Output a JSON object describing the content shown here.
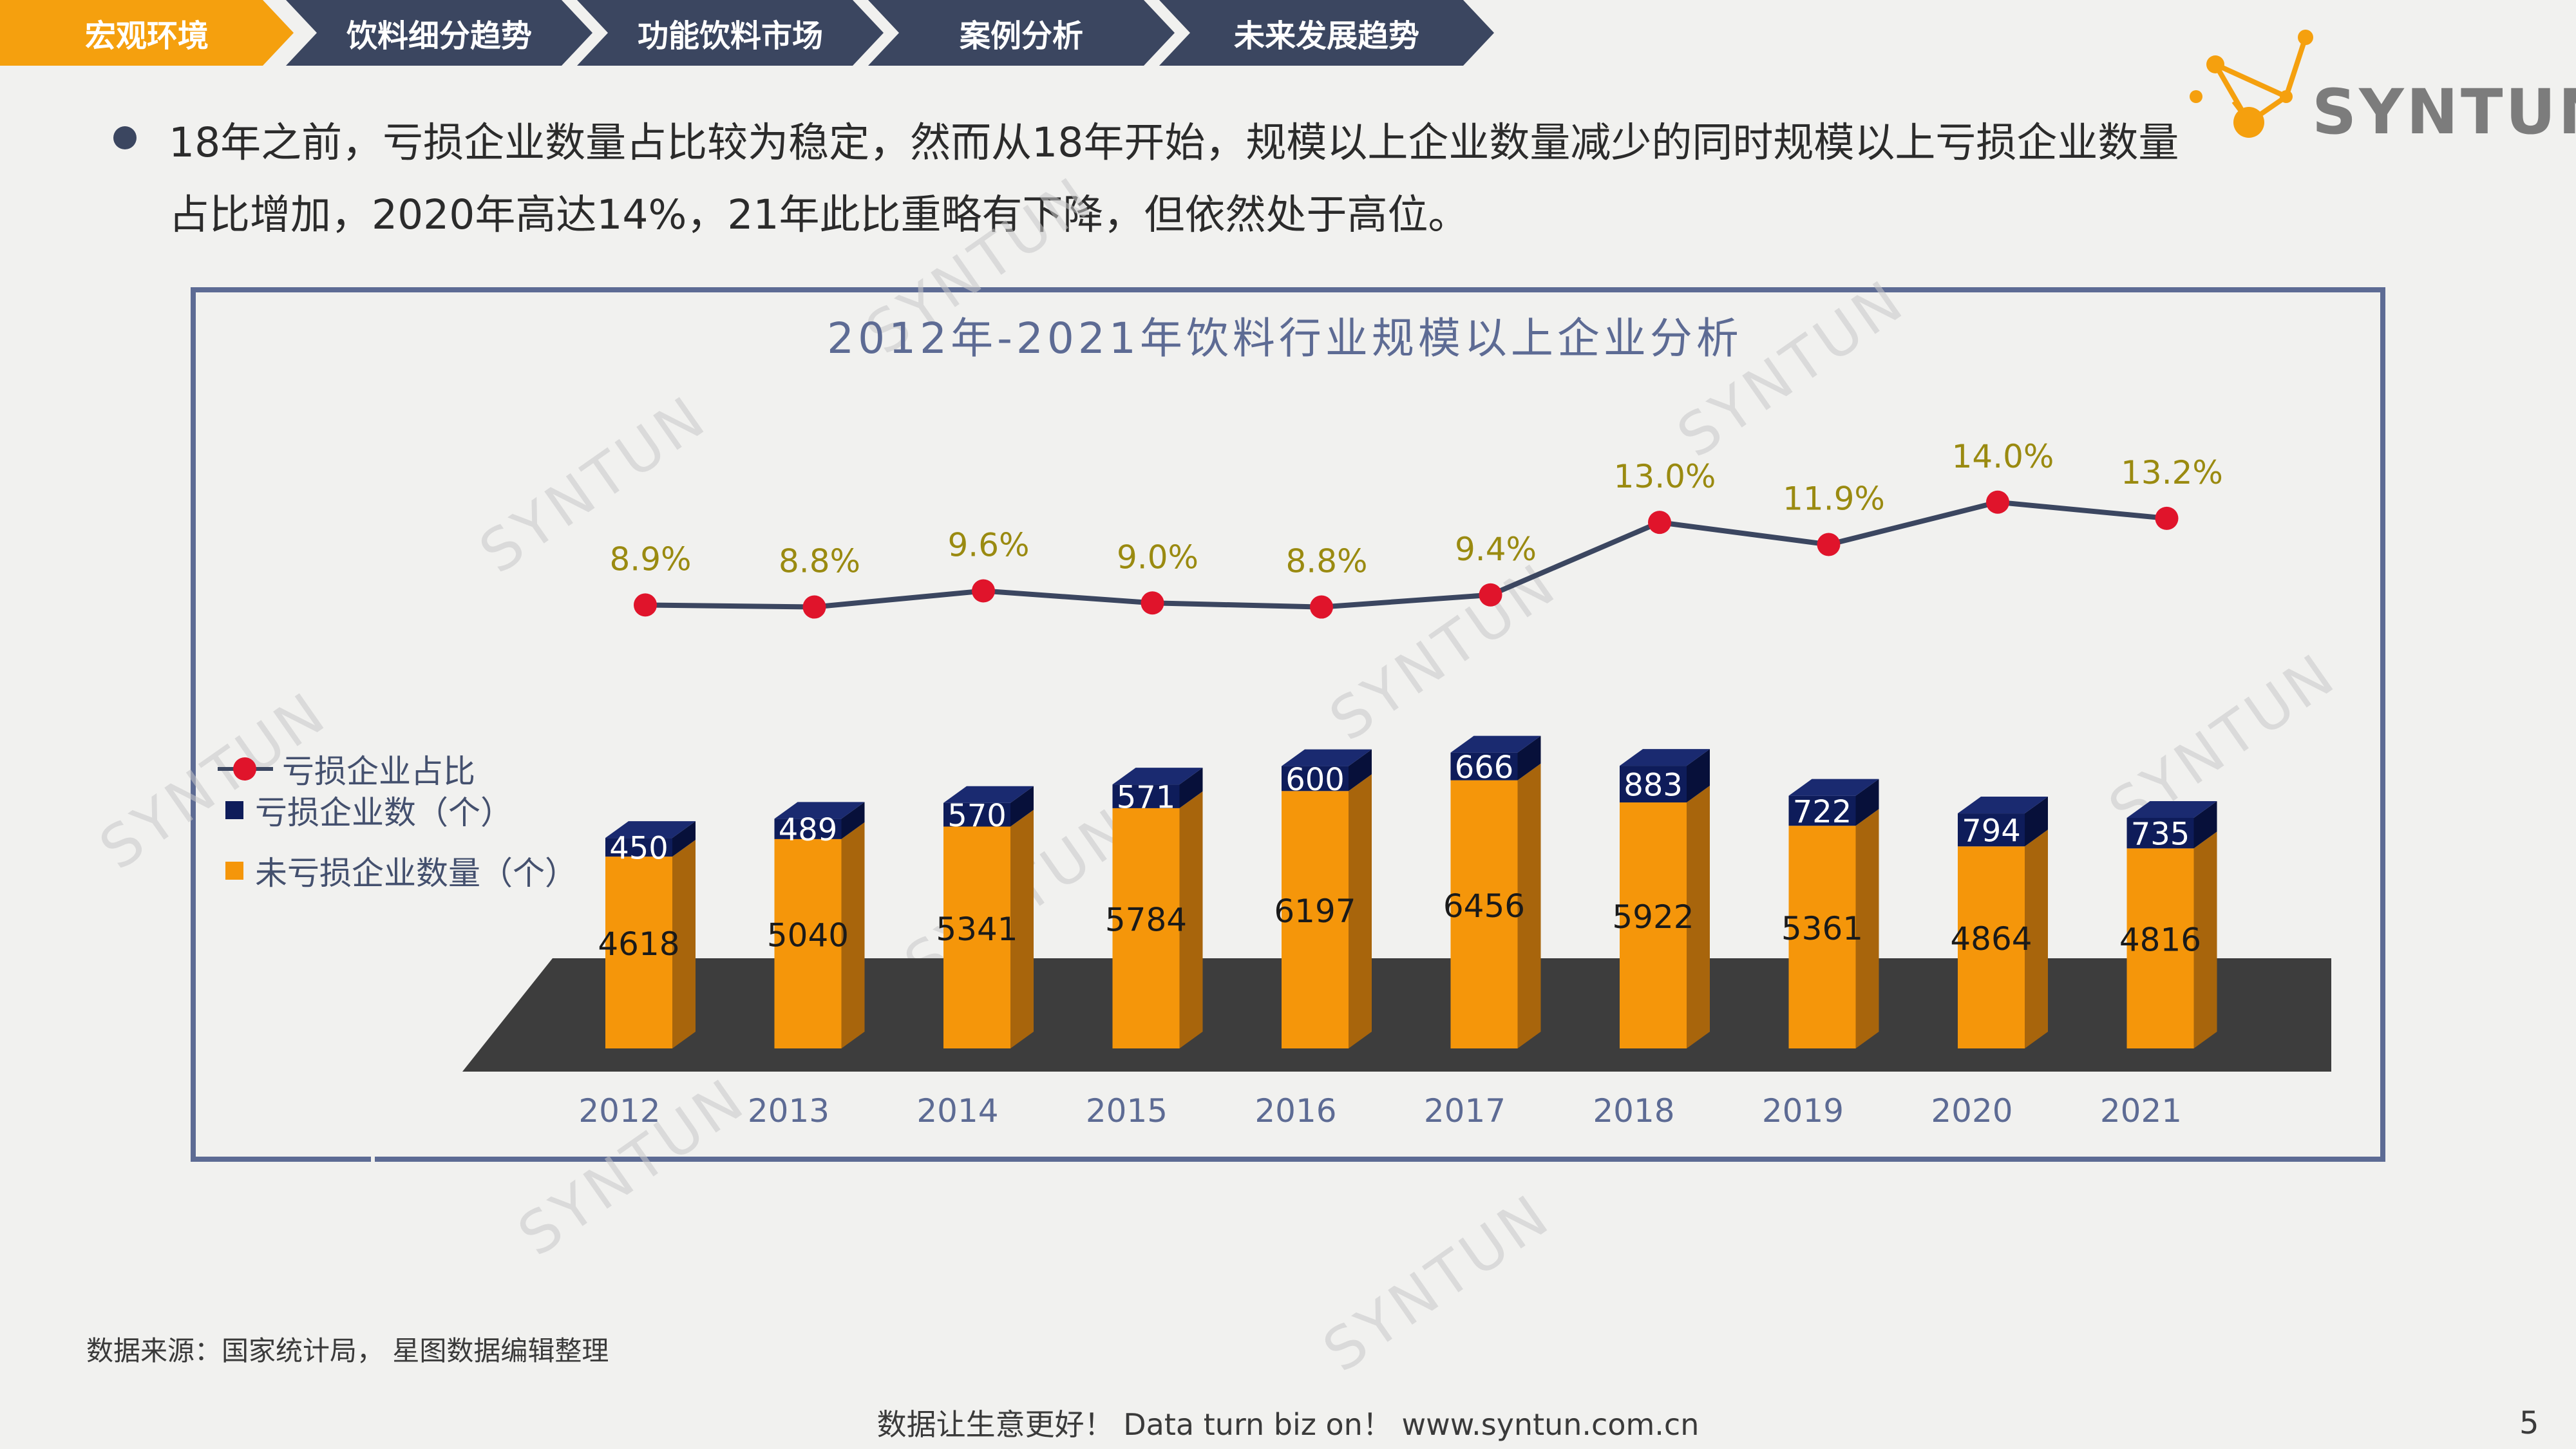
{
  "nav": {
    "items": [
      {
        "label": "宏观环境",
        "active": true
      },
      {
        "label": "饮料细分趋势",
        "active": false
      },
      {
        "label": "功能饮料市场",
        "active": false
      },
      {
        "label": "案例分析",
        "active": false
      },
      {
        "label": "未来发展趋势",
        "active": false
      }
    ],
    "active_color": "#f5a00e",
    "inactive_color": "#3b4660"
  },
  "logo": {
    "text": "SYNTUN",
    "icon": "network-node-icon"
  },
  "bullet": {
    "text": "18年之前，亏损企业数量占比较为稳定，然而从18年开始，规模以上企业数量减少的同时规模以上亏损企业数量占比增加，2020年高达14%，21年此比重略有下降，但依然处于高位。"
  },
  "watermark": "SYNTUN",
  "chart_data": {
    "type": "bar",
    "title": "2012年-2021年饮料行业规模以上企业分析",
    "categories": [
      "2012",
      "2013",
      "2014",
      "2015",
      "2016",
      "2017",
      "2018",
      "2019",
      "2020",
      "2021"
    ],
    "series": [
      {
        "name": "未亏损企业数量（个）",
        "kind": "stacked-bar",
        "color": "#f5960a",
        "values": [
          4618,
          5040,
          5341,
          5784,
          6197,
          6456,
          5922,
          5361,
          4864,
          4816
        ]
      },
      {
        "name": "亏损企业数（个）",
        "kind": "stacked-bar",
        "color": "#0e1c5a",
        "values": [
          450,
          489,
          570,
          571,
          600,
          666,
          883,
          722,
          794,
          735
        ]
      },
      {
        "name": "亏损企业占比",
        "kind": "line",
        "color": "#e0142b",
        "values": [
          8.9,
          8.8,
          9.6,
          9.0,
          8.8,
          9.4,
          13.0,
          11.9,
          14.0,
          13.2
        ],
        "labels": [
          "8.9%",
          "8.8%",
          "9.6%",
          "9.0%",
          "8.8%",
          "9.4%",
          "13.0%",
          "11.9%",
          "14.0%",
          "13.2%"
        ]
      }
    ],
    "legend": [
      {
        "label": "亏损企业占比",
        "color": "#e0142b"
      },
      {
        "label": "亏损企业数（个）",
        "color": "#0e1c5a"
      },
      {
        "label": "未亏损企业数量（个）",
        "color": "#f5960a"
      }
    ],
    "legend_position": "left",
    "grid": false
  },
  "source": "数据来源：国家统计局， 星图数据编辑整理",
  "footer": "数据让生意更好！ Data turn biz on！ www.syntun.com.cn",
  "page_number": "5"
}
